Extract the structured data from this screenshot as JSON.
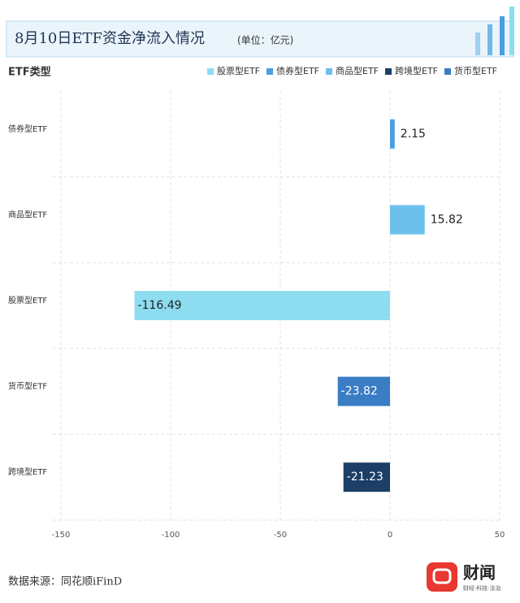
{
  "chart_data": {
    "type": "hbar",
    "title": "8月10日ETF资金净流入情况",
    "subtitle": "(单位：亿元)",
    "y_axis_label": "ETF类型",
    "legend": [
      {
        "name": "股票型ETF",
        "color": "#8ddcf0"
      },
      {
        "name": "债券型ETF",
        "color": "#4a9ee0"
      },
      {
        "name": "商品型ETF",
        "color": "#6cc0ec"
      },
      {
        "name": "跨境型ETF",
        "color": "#1b3f66"
      },
      {
        "name": "货币型ETF",
        "color": "#3a7dc4"
      }
    ],
    "categories": [
      "债券型ETF",
      "商品型ETF",
      "股票型ETF",
      "货币型ETF",
      "跨境型ETF"
    ],
    "values": [
      2.15,
      15.82,
      -116.49,
      -23.82,
      -21.23
    ],
    "colors": [
      "#4a9ee0",
      "#6cc0ec",
      "#8ddcf0",
      "#3a7dc4",
      "#1b3f66"
    ],
    "xlim": [
      -150,
      50
    ],
    "xticks": [
      -150,
      -100,
      -50,
      0,
      50
    ],
    "grid": true
  },
  "footer": {
    "source": "数据来源：同花顺iFinD",
    "brand": "财闻",
    "brand_tagline": "财经·科技·法治"
  }
}
